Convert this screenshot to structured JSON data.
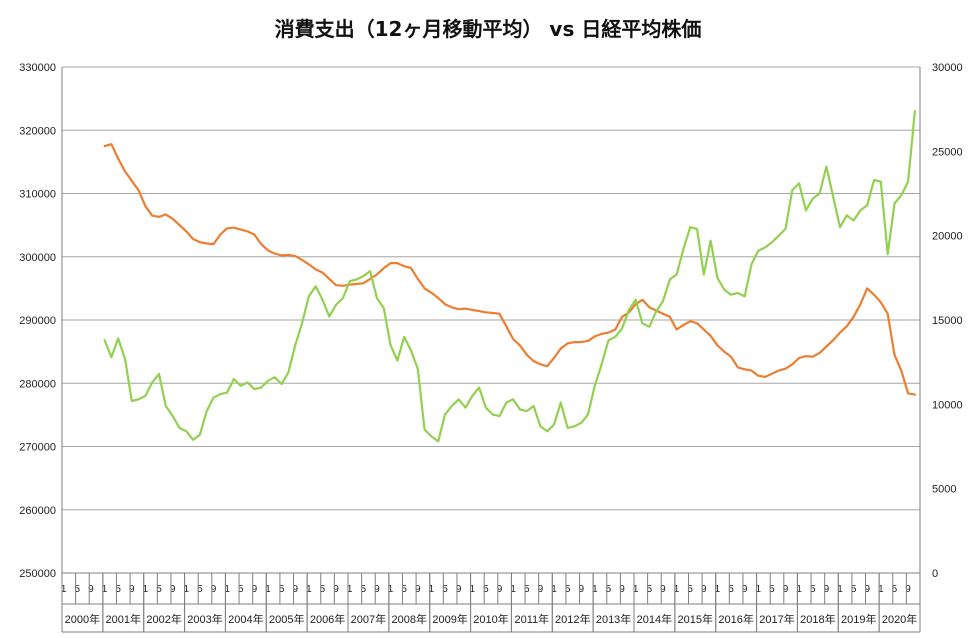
{
  "chart_data": {
    "type": "line",
    "title": "消費支出（12ヶ月移動平均） vs 日経平均株価",
    "x_unit": "year-month",
    "year_labels": [
      "2000年",
      "2001年",
      "2002年",
      "2003年",
      "2004年",
      "2005年",
      "2006年",
      "2007年",
      "2008年",
      "2009年",
      "2010年",
      "2011年",
      "2012年",
      "2013年",
      "2014年",
      "2015年",
      "2016年",
      "2017年",
      "2018年",
      "2019年",
      "2020年"
    ],
    "month_tick_labels": [
      "1",
      "5",
      "9"
    ],
    "y_left": {
      "min": 250000,
      "max": 330000,
      "step": 10000,
      "ticks": [
        "250000",
        "260000",
        "270000",
        "280000",
        "290000",
        "300000",
        "310000",
        "320000",
        "330000"
      ]
    },
    "y_right": {
      "min": 0,
      "max": 30000,
      "step": 5000,
      "ticks": [
        "0",
        "5000",
        "10000",
        "15000",
        "20000",
        "25000",
        "30000"
      ]
    },
    "grid": true,
    "colors": {
      "series_orange": "#ED7D31",
      "series_green": "#92D050",
      "grid": "#A6A6A6",
      "axis": "#7F7F7F"
    },
    "series": [
      {
        "axis": "left",
        "color": "#ED7D31",
        "points": [
          [
            "2001-01",
            317500
          ],
          [
            "2001-03",
            317800
          ],
          [
            "2001-05",
            315500
          ],
          [
            "2001-07",
            313500
          ],
          [
            "2001-09",
            312000
          ],
          [
            "2001-11",
            310500
          ],
          [
            "2002-01",
            308000
          ],
          [
            "2002-03",
            306500
          ],
          [
            "2002-05",
            306300
          ],
          [
            "2002-07",
            306700
          ],
          [
            "2002-09",
            306000
          ],
          [
            "2002-11",
            305000
          ],
          [
            "2003-01",
            304000
          ],
          [
            "2003-03",
            302800
          ],
          [
            "2003-05",
            302300
          ],
          [
            "2003-07",
            302100
          ],
          [
            "2003-09",
            302000
          ],
          [
            "2003-11",
            303500
          ],
          [
            "2004-01",
            304500
          ],
          [
            "2004-03",
            304600
          ],
          [
            "2004-05",
            304300
          ],
          [
            "2004-07",
            304000
          ],
          [
            "2004-09",
            303500
          ],
          [
            "2004-11",
            302000
          ],
          [
            "2005-01",
            301000
          ],
          [
            "2005-03",
            300500
          ],
          [
            "2005-05",
            300200
          ],
          [
            "2005-07",
            300300
          ],
          [
            "2005-09",
            300100
          ],
          [
            "2005-11",
            299500
          ],
          [
            "2006-01",
            298800
          ],
          [
            "2006-03",
            298000
          ],
          [
            "2006-05",
            297500
          ],
          [
            "2006-07",
            296500
          ],
          [
            "2006-09",
            295500
          ],
          [
            "2006-11",
            295400
          ],
          [
            "2007-01",
            295600
          ],
          [
            "2007-03",
            295700
          ],
          [
            "2007-05",
            295800
          ],
          [
            "2007-07",
            296500
          ],
          [
            "2007-09",
            297200
          ],
          [
            "2007-11",
            298200
          ],
          [
            "2008-01",
            299000
          ],
          [
            "2008-03",
            299000
          ],
          [
            "2008-05",
            298500
          ],
          [
            "2008-07",
            298200
          ],
          [
            "2008-09",
            296500
          ],
          [
            "2008-11",
            295000
          ],
          [
            "2009-01",
            294300
          ],
          [
            "2009-03",
            293500
          ],
          [
            "2009-05",
            292500
          ],
          [
            "2009-07",
            292000
          ],
          [
            "2009-09",
            291700
          ],
          [
            "2009-11",
            291800
          ],
          [
            "2010-01",
            291600
          ],
          [
            "2010-03",
            291400
          ],
          [
            "2010-05",
            291200
          ],
          [
            "2010-07",
            291100
          ],
          [
            "2010-09",
            291000
          ],
          [
            "2010-11",
            289000
          ],
          [
            "2011-01",
            287000
          ],
          [
            "2011-03",
            286000
          ],
          [
            "2011-05",
            284500
          ],
          [
            "2011-07",
            283500
          ],
          [
            "2011-09",
            283000
          ],
          [
            "2011-11",
            282700
          ],
          [
            "2012-01",
            284000
          ],
          [
            "2012-03",
            285500
          ],
          [
            "2012-05",
            286300
          ],
          [
            "2012-07",
            286500
          ],
          [
            "2012-09",
            286500
          ],
          [
            "2012-11",
            286700
          ],
          [
            "2013-01",
            287400
          ],
          [
            "2013-03",
            287800
          ],
          [
            "2013-05",
            288000
          ],
          [
            "2013-07",
            288500
          ],
          [
            "2013-09",
            290500
          ],
          [
            "2013-11",
            291200
          ],
          [
            "2014-01",
            292500
          ],
          [
            "2014-03",
            293200
          ],
          [
            "2014-05",
            292000
          ],
          [
            "2014-07",
            291500
          ],
          [
            "2014-09",
            291000
          ],
          [
            "2014-11",
            290500
          ],
          [
            "2015-01",
            288500
          ],
          [
            "2015-03",
            289200
          ],
          [
            "2015-05",
            289800
          ],
          [
            "2015-07",
            289500
          ],
          [
            "2015-09",
            288500
          ],
          [
            "2015-11",
            287500
          ],
          [
            "2016-01",
            286000
          ],
          [
            "2016-03",
            285000
          ],
          [
            "2016-05",
            284200
          ],
          [
            "2016-07",
            282500
          ],
          [
            "2016-09",
            282200
          ],
          [
            "2016-11",
            282000
          ],
          [
            "2017-01",
            281200
          ],
          [
            "2017-03",
            281000
          ],
          [
            "2017-05",
            281500
          ],
          [
            "2017-07",
            282000
          ],
          [
            "2017-09",
            282300
          ],
          [
            "2017-11",
            283000
          ],
          [
            "2018-01",
            284000
          ],
          [
            "2018-03",
            284300
          ],
          [
            "2018-05",
            284200
          ],
          [
            "2018-07",
            284800
          ],
          [
            "2018-09",
            285800
          ],
          [
            "2018-11",
            286800
          ],
          [
            "2019-01",
            288000
          ],
          [
            "2019-03",
            289000
          ],
          [
            "2019-05",
            290500
          ],
          [
            "2019-07",
            292500
          ],
          [
            "2019-09",
            295000
          ],
          [
            "2019-11",
            294000
          ],
          [
            "2020-01",
            292800
          ],
          [
            "2020-03",
            291000
          ],
          [
            "2020-05",
            284500
          ],
          [
            "2020-07",
            282000
          ],
          [
            "2020-09",
            278400
          ],
          [
            "2020-11",
            278200
          ]
        ]
      },
      {
        "axis": "right",
        "color": "#92D050",
        "points": [
          [
            "2001-01",
            13800
          ],
          [
            "2001-03",
            12800
          ],
          [
            "2001-05",
            13900
          ],
          [
            "2001-07",
            12700
          ],
          [
            "2001-09",
            10200
          ],
          [
            "2001-11",
            10300
          ],
          [
            "2002-01",
            10500
          ],
          [
            "2002-03",
            11300
          ],
          [
            "2002-05",
            11800
          ],
          [
            "2002-07",
            9900
          ],
          [
            "2002-09",
            9300
          ],
          [
            "2002-11",
            8600
          ],
          [
            "2003-01",
            8400
          ],
          [
            "2003-03",
            7900
          ],
          [
            "2003-05",
            8200
          ],
          [
            "2003-07",
            9600
          ],
          [
            "2003-09",
            10400
          ],
          [
            "2003-11",
            10600
          ],
          [
            "2004-01",
            10700
          ],
          [
            "2004-03",
            11500
          ],
          [
            "2004-05",
            11100
          ],
          [
            "2004-07",
            11300
          ],
          [
            "2004-09",
            10900
          ],
          [
            "2004-11",
            11000
          ],
          [
            "2005-01",
            11400
          ],
          [
            "2005-03",
            11600
          ],
          [
            "2005-05",
            11200
          ],
          [
            "2005-07",
            11900
          ],
          [
            "2005-09",
            13500
          ],
          [
            "2005-11",
            14800
          ],
          [
            "2006-01",
            16400
          ],
          [
            "2006-03",
            17000
          ],
          [
            "2006-05",
            16200
          ],
          [
            "2006-07",
            15200
          ],
          [
            "2006-09",
            15900
          ],
          [
            "2006-11",
            16300
          ],
          [
            "2007-01",
            17300
          ],
          [
            "2007-03",
            17400
          ],
          [
            "2007-05",
            17600
          ],
          [
            "2007-07",
            17900
          ],
          [
            "2007-09",
            16300
          ],
          [
            "2007-11",
            15700
          ],
          [
            "2008-01",
            13500
          ],
          [
            "2008-03",
            12600
          ],
          [
            "2008-05",
            14000
          ],
          [
            "2008-07",
            13200
          ],
          [
            "2008-09",
            12100
          ],
          [
            "2008-11",
            8500
          ],
          [
            "2009-01",
            8100
          ],
          [
            "2009-03",
            7800
          ],
          [
            "2009-05",
            9400
          ],
          [
            "2009-07",
            9900
          ],
          [
            "2009-09",
            10300
          ],
          [
            "2009-11",
            9800
          ],
          [
            "2010-01",
            10500
          ],
          [
            "2010-03",
            11000
          ],
          [
            "2010-05",
            9800
          ],
          [
            "2010-07",
            9400
          ],
          [
            "2010-09",
            9300
          ],
          [
            "2010-11",
            10100
          ],
          [
            "2011-01",
            10300
          ],
          [
            "2011-03",
            9700
          ],
          [
            "2011-05",
            9600
          ],
          [
            "2011-07",
            9900
          ],
          [
            "2011-09",
            8700
          ],
          [
            "2011-11",
            8400
          ],
          [
            "2012-01",
            8800
          ],
          [
            "2012-03",
            10100
          ],
          [
            "2012-05",
            8600
          ],
          [
            "2012-07",
            8700
          ],
          [
            "2012-09",
            8900
          ],
          [
            "2012-11",
            9400
          ],
          [
            "2013-01",
            11100
          ],
          [
            "2013-03",
            12400
          ],
          [
            "2013-05",
            13800
          ],
          [
            "2013-07",
            14000
          ],
          [
            "2013-09",
            14500
          ],
          [
            "2013-11",
            15600
          ],
          [
            "2014-01",
            16200
          ],
          [
            "2014-03",
            14800
          ],
          [
            "2014-05",
            14600
          ],
          [
            "2014-07",
            15500
          ],
          [
            "2014-09",
            16100
          ],
          [
            "2014-11",
            17400
          ],
          [
            "2015-01",
            17700
          ],
          [
            "2015-03",
            19200
          ],
          [
            "2015-05",
            20500
          ],
          [
            "2015-07",
            20400
          ],
          [
            "2015-09",
            17700
          ],
          [
            "2015-11",
            19700
          ],
          [
            "2016-01",
            17500
          ],
          [
            "2016-03",
            16800
          ],
          [
            "2016-05",
            16500
          ],
          [
            "2016-07",
            16600
          ],
          [
            "2016-09",
            16400
          ],
          [
            "2016-11",
            18300
          ],
          [
            "2017-01",
            19100
          ],
          [
            "2017-03",
            19300
          ],
          [
            "2017-05",
            19600
          ],
          [
            "2017-07",
            20000
          ],
          [
            "2017-09",
            20400
          ],
          [
            "2017-11",
            22700
          ],
          [
            "2018-01",
            23100
          ],
          [
            "2018-03",
            21500
          ],
          [
            "2018-05",
            22200
          ],
          [
            "2018-07",
            22500
          ],
          [
            "2018-09",
            24100
          ],
          [
            "2018-11",
            22300
          ],
          [
            "2019-01",
            20500
          ],
          [
            "2019-03",
            21200
          ],
          [
            "2019-05",
            20900
          ],
          [
            "2019-07",
            21500
          ],
          [
            "2019-09",
            21800
          ],
          [
            "2019-11",
            23300
          ],
          [
            "2020-01",
            23200
          ],
          [
            "2020-03",
            18900
          ],
          [
            "2020-05",
            21900
          ],
          [
            "2020-07",
            22400
          ],
          [
            "2020-09",
            23200
          ],
          [
            "2020-11",
            27400
          ]
        ]
      }
    ]
  }
}
